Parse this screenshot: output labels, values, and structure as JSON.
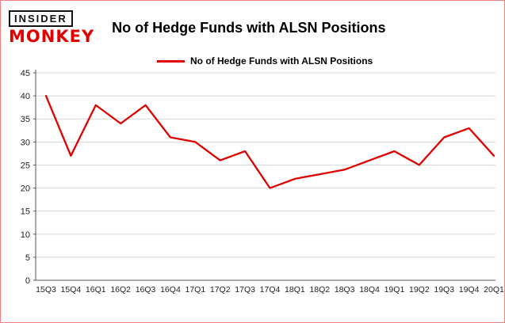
{
  "logo": {
    "line1": "INSIDER",
    "line2": "MONKEY"
  },
  "header": {
    "title": "No of Hedge Funds with ALSN Positions"
  },
  "legend": {
    "label": "No of Hedge Funds with ALSN Positions"
  },
  "colors": {
    "line_red": "#e00000",
    "logo_red": "#e00000",
    "page_border": "#f08080",
    "grid": "#d8d8d8",
    "axis": "#555555",
    "tick_text": "#222222"
  },
  "chart_data": {
    "type": "line",
    "title": "No of Hedge Funds with ALSN Positions",
    "categories": [
      "15Q3",
      "15Q4",
      "16Q1",
      "16Q2",
      "16Q3",
      "16Q4",
      "17Q1",
      "17Q2",
      "17Q3",
      "17Q4",
      "18Q1",
      "18Q2",
      "18Q3",
      "18Q4",
      "19Q1",
      "19Q2",
      "19Q3",
      "19Q4",
      "20Q1"
    ],
    "values": [
      40,
      27,
      38,
      34,
      38,
      31,
      30,
      26,
      28,
      20,
      22,
      23,
      24,
      26,
      28,
      25,
      31,
      33,
      27
    ],
    "xlabel": "",
    "ylabel": "",
    "ylim": [
      0,
      45
    ],
    "yticks": [
      0,
      5,
      10,
      15,
      20,
      25,
      30,
      35,
      40,
      45
    ],
    "grid": true,
    "legend_position": "top-left",
    "line_color": "#e00000",
    "series": [
      {
        "name": "No of Hedge Funds with ALSN Positions",
        "values": [
          40,
          27,
          38,
          34,
          38,
          31,
          30,
          26,
          28,
          20,
          22,
          23,
          24,
          26,
          28,
          25,
          31,
          33,
          27
        ]
      }
    ]
  }
}
